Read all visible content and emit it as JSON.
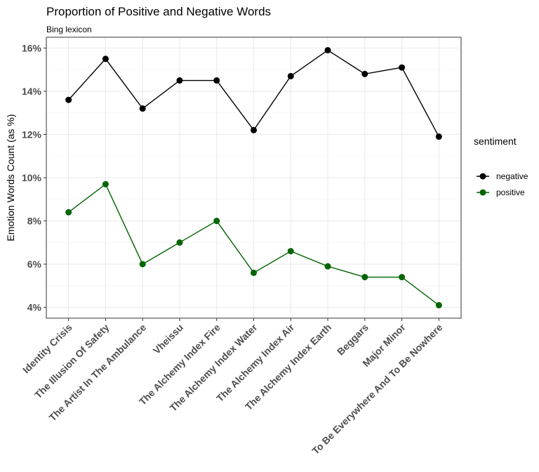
{
  "chart_data": {
    "type": "line",
    "title": "Proportion of Positive and Negative Words",
    "subtitle": "Bing lexicon",
    "xlabel": "",
    "ylabel": "Emotion Words Count (as %)",
    "categories": [
      "Identity Crisis",
      "The Illusion Of Safety",
      "The Artist In The Ambulance",
      "Vheissu",
      "The Alchemy Index Fire",
      "The Alchemy Index Water",
      "The Alchemy Index Air",
      "The Alchemy Index Earth",
      "Beggars",
      "Major Minor",
      "To Be Everywhere And To Be Nowhere"
    ],
    "ylim": [
      3.5,
      16.5
    ],
    "yticks": [
      4,
      6,
      8,
      10,
      12,
      14,
      16
    ],
    "ytick_labels": [
      "4%",
      "6%",
      "8%",
      "10%",
      "12%",
      "14%",
      "16%"
    ],
    "grid": true,
    "legend": {
      "title": "sentiment",
      "position": "right"
    },
    "series": [
      {
        "name": "negative",
        "color": "#000000",
        "values": [
          13.6,
          15.5,
          13.2,
          14.5,
          14.5,
          12.2,
          14.7,
          15.9,
          14.8,
          15.1,
          11.9
        ]
      },
      {
        "name": "positive",
        "color": "#006400",
        "values": [
          8.4,
          9.7,
          6.0,
          7.0,
          8.0,
          5.6,
          6.6,
          5.9,
          5.4,
          5.4,
          4.1
        ]
      }
    ]
  }
}
